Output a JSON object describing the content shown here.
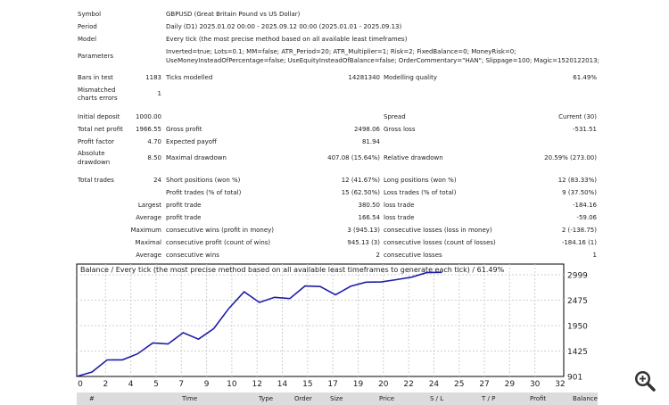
{
  "report": {
    "symbol_label": "Symbol",
    "symbol_value": "GBPUSD (Great Britain Pound vs US Dollar)",
    "period_label": "Period",
    "period_value": "Daily (D1) 2025.01.02 00:00 - 2025.09.12 00:00 (2025.01.01 - 2025.09.13)",
    "model_label": "Model",
    "model_value": "Every tick (the most precise method based on all available least timeframes)",
    "params_label": "Parameters",
    "params_line1": "Inverted=true; Lots=0.1; MM=false; ATR_Period=20; ATR_Multiplier=1; Risk=2; FixedBalance=0; MoneyRisk=0;",
    "params_line2": "UseMoneyInsteadOfPercentage=false; UseEquityInsteadOfBalance=false; OrderCommentary=\"HAN\"; Slippage=100; Magic=1520122013;",
    "bars_label": "Bars in test",
    "bars_value": "1183",
    "ticks_label": "Ticks modelled",
    "ticks_value": "14281340",
    "quality_label": "Modelling quality",
    "quality_value": "61.49%",
    "mismatch_label1": "Mismatched",
    "mismatch_label2": "charts errors",
    "mismatch_value": "1",
    "deposit_label": "Initial deposit",
    "deposit_value": "1000.00",
    "spread_label": "Spread",
    "spread_value": "Current (30)",
    "netprofit_label": "Total net profit",
    "netprofit_value": "1966.55",
    "grossprofit_label": "Gross profit",
    "grossprofit_value": "2498.06",
    "grossloss_label": "Gross loss",
    "grossloss_value": "-531.51",
    "pf_label": "Profit factor",
    "pf_value": "4.70",
    "ep_label": "Expected payoff",
    "ep_value": "81.94",
    "absdd_label1": "Absolute",
    "absdd_label2": "drawdown",
    "absdd_value": "8.50",
    "maxdd_label": "Maximal drawdown",
    "maxdd_value": "407.08 (15.64%)",
    "reldd_label": "Relative drawdown",
    "reldd_value": "20.59% (273.00)",
    "trades_label": "Total trades",
    "trades_value": "24",
    "short_label": "Short positions (won %)",
    "short_value": "12 (41.67%)",
    "long_label": "Long positions (won %)",
    "long_value": "12 (83.33%)",
    "pt_label": "Profit trades (% of total)",
    "pt_value": "15 (62.50%)",
    "lt_label": "Loss trades (% of total)",
    "lt_value": "9 (37.50%)",
    "largest_label": "Largest",
    "largest_pt_label": "profit trade",
    "largest_pt_value": "380.50",
    "largest_lt_label": "loss trade",
    "largest_lt_value": "-184.16",
    "average_label": "Average",
    "average_pt_label": "profit trade",
    "average_pt_value": "166.54",
    "average_lt_label": "loss trade",
    "average_lt_value": "-59.06",
    "maximum_label": "Maximum",
    "max_cw_label": "consecutive wins (profit in money)",
    "max_cw_value": "3 (945.13)",
    "max_cl_label": "consecutive losses (loss in money)",
    "max_cl_value": "2 (-138.75)",
    "maximal_label": "Maximal",
    "mx_cp_label": "consecutive profit (count of wins)",
    "mx_cp_value": "945.13 (3)",
    "mx_cl_label": "consecutive losses (count of losses)",
    "mx_cl_value": "-184.16 (1)",
    "avg2_label": "Average",
    "avg_cw_label": "consecutive wins",
    "avg_cw_value": "2",
    "avg_cl_label": "consecutive losses",
    "avg_cl_value": "1"
  },
  "chart_data": {
    "type": "line",
    "title": "Balance / Every tick (the most precise method based on all available least timeframes to generate each tick) / 61.49%",
    "xlim": [
      0,
      32
    ],
    "ylim": [
      901,
      3130
    ],
    "x_ticks": [
      "0",
      "2",
      "4",
      "5",
      "7",
      "9",
      "10",
      "12",
      "14",
      "15",
      "17",
      "19",
      "20",
      "22",
      "24",
      "25",
      "27",
      "29",
      "30",
      "32"
    ],
    "y_ticks": [
      "2999",
      "2475",
      "1950",
      "1425",
      "901"
    ],
    "line_color": "#1e1ea8",
    "series": [
      {
        "x": [
          0,
          1,
          2,
          3,
          4,
          5,
          6,
          7,
          8,
          9,
          10,
          11,
          12,
          13,
          14,
          15,
          16,
          17,
          18,
          19,
          20,
          21,
          22,
          23,
          24
        ],
        "values": [
          901,
          990,
          1228,
          1230,
          1350,
          1565,
          1545,
          1770,
          1640,
          1850,
          2250,
          2580,
          2370,
          2470,
          2445,
          2695,
          2685,
          2520,
          2690,
          2770,
          2775,
          2820,
          2870,
          2960,
          2966
        ]
      }
    ]
  },
  "table_header": {
    "col_num": "#",
    "col_time": "Time",
    "col_type": "Type",
    "col_order": "Order",
    "col_size": "Size",
    "col_price": "Price",
    "col_sl": "S / L",
    "col_tp": "T / P",
    "col_profit": "Profit",
    "col_balance": "Balance"
  }
}
